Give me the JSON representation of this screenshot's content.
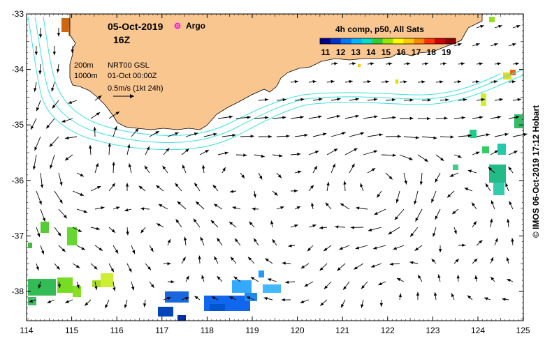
{
  "title": {
    "date": "05-Oct-2019",
    "time": "16Z",
    "argo_label": "Argo"
  },
  "colorbar": {
    "title": "4h comp, p50, All Sats",
    "ticks": [
      "11",
      "12",
      "13",
      "14",
      "15",
      "16",
      "17",
      "18",
      "19"
    ],
    "colors": [
      "#00008c",
      "#0033cc",
      "#0077ff",
      "#00b3ff",
      "#00ddcc",
      "#33cc33",
      "#99e600",
      "#ffff00",
      "#ffcc00",
      "#ff8800",
      "#ff3300",
      "#cc0000",
      "#8c0000"
    ]
  },
  "legend": {
    "depth_200": "200m",
    "depth_1000": "1000m",
    "product": "NRT00 GSL",
    "ref_time": "01-Oct 00:00Z",
    "speed_scale": "0.5m/s (1kt 24h)"
  },
  "axes": {
    "x_ticks": [
      "114",
      "115",
      "116",
      "117",
      "118",
      "119",
      "120",
      "121",
      "122",
      "123",
      "124",
      "125"
    ],
    "y_ticks": [
      "-33",
      "-34",
      "-35",
      "-36",
      "-37",
      "-38"
    ]
  },
  "copyright": "© IMOS 06-Oct-2019 17:12 Hobart",
  "colors": {
    "land": "#f9c690",
    "isobath": "#40e0e0",
    "argo": "#ff00ff"
  }
}
